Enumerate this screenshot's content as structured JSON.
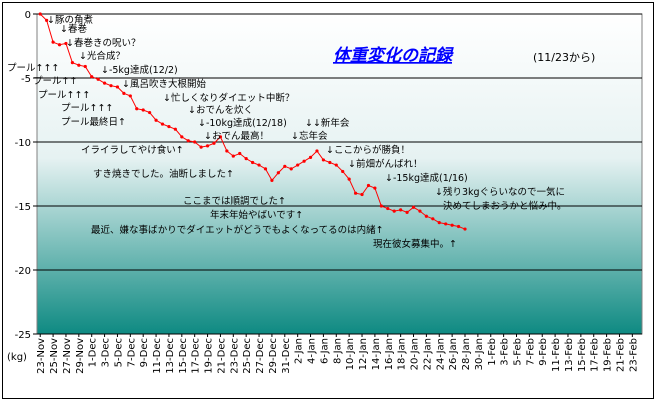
{
  "chart_data": {
    "type": "line",
    "title": "体重変化の記録",
    "subtitle": "(11/23から)",
    "ylabel": "(kg)",
    "ylim": [
      -25,
      0
    ],
    "yticks": [
      0,
      -5,
      -10,
      -15,
      -20,
      -25
    ],
    "grid": true,
    "x_labels": [
      "23-Nov",
      "25-Nov",
      "27-Nov",
      "29-Nov",
      "1-Dec",
      "3-Dec",
      "5-Dec",
      "7-Dec",
      "9-Dec",
      "11-Dec",
      "13-Dec",
      "15-Dec",
      "17-Dec",
      "19-Dec",
      "21-Dec",
      "23-Dec",
      "25-Dec",
      "27-Dec",
      "29-Dec",
      "31-Dec",
      "2-Jan",
      "4-Jan",
      "6-Jan",
      "8-Jan",
      "10-Jan",
      "12-Jan",
      "14-Jan",
      "16-Jan",
      "18-Jan",
      "20-Jan",
      "22-Jan",
      "24-Jan",
      "26-Jan",
      "28-Jan",
      "30-Jan",
      "1-Feb",
      "3-Feb",
      "5-Feb",
      "7-Feb",
      "9-Feb",
      "11-Feb",
      "13-Feb",
      "15-Feb",
      "17-Feb",
      "19-Feb",
      "21-Feb",
      "23-Feb"
    ],
    "series": [
      {
        "color": "#ff0000",
        "x": [
          "11-23",
          "11-24",
          "11-25",
          "11-26",
          "11-27",
          "11-28",
          "11-29",
          "11-30",
          "12-01",
          "12-02",
          "12-03",
          "12-04",
          "12-05",
          "12-06",
          "12-07",
          "12-08",
          "12-09",
          "12-10",
          "12-11",
          "12-12",
          "12-13",
          "12-14",
          "12-15",
          "12-16",
          "12-17",
          "12-18",
          "12-19",
          "12-20",
          "12-21",
          "12-22",
          "12-23",
          "12-24",
          "12-25",
          "12-26",
          "12-27",
          "12-28",
          "12-29",
          "12-30",
          "12-31",
          "01-01",
          "01-02",
          "01-03",
          "01-04",
          "01-05",
          "01-06",
          "01-07",
          "01-08",
          "01-09",
          "01-10",
          "01-11",
          "01-12",
          "01-13",
          "01-14",
          "01-15",
          "01-16",
          "01-17",
          "01-18",
          "01-19",
          "01-20",
          "01-21",
          "01-22",
          "01-23",
          "01-24",
          "01-25",
          "01-26",
          "01-27",
          "01-28"
        ],
        "values": [
          0,
          -0.5,
          -2.2,
          -2.4,
          -2.3,
          -3.8,
          -4.0,
          -4.1,
          -4.9,
          -5.1,
          -5.4,
          -5.6,
          -5.7,
          -6.2,
          -6.4,
          -7.4,
          -7.5,
          -7.7,
          -8.3,
          -8.6,
          -8.8,
          -9.0,
          -9.6,
          -9.9,
          -10.0,
          -10.4,
          -10.3,
          -10.1,
          -9.6,
          -10.7,
          -11.1,
          -10.9,
          -11.3,
          -11.6,
          -11.8,
          -12.1,
          -13.0,
          -12.4,
          -11.9,
          -12.1,
          -11.8,
          -11.5,
          -11.2,
          -10.7,
          -11.4,
          -11.6,
          -11.8,
          -12.3,
          -12.9,
          -14.0,
          -14.1,
          -13.4,
          -13.6,
          -15.0,
          -15.2,
          -15.4,
          -15.3,
          -15.5,
          -15.1,
          -15.4,
          -15.8,
          -16.0,
          -16.3,
          -16.4,
          -16.5,
          -16.6,
          -16.8
        ]
      }
    ],
    "annotations": [
      "↓豚の角煮",
      "↓春巻",
      "↓春巻きの呪い？",
      "↓光合成？",
      "↓-5kg達成(12/2)",
      "↓風呂吹き大根開始",
      "↓忙しくなりダイエット中断？",
      "↓おでんを炊く",
      "↓-10kg達成(12/18)",
      "↓おでん最高！",
      "↓↓新年会",
      "↓忘年会",
      "↓ここからが勝負！",
      "↓前畑がんばれ！",
      "↓-15kg達成(1/16)",
      "↓残り3kgぐらいなので一気に",
      "決めてしまおうかと悩み中。",
      "プール↑↑↑",
      "プール↑↑",
      "プール↑↑↑",
      "プール↑↑↑",
      "プール最終日↑",
      "イライラしてやけ食い↑",
      "すき焼きでした。油断しました↑",
      "ここまでは順調でした↑",
      "年末年始やばいです↑",
      "最近、嫌な事ばかりでダイエットがどうでもよくなってるのは内緒↑",
      "現在彼女募集中。↑"
    ]
  }
}
